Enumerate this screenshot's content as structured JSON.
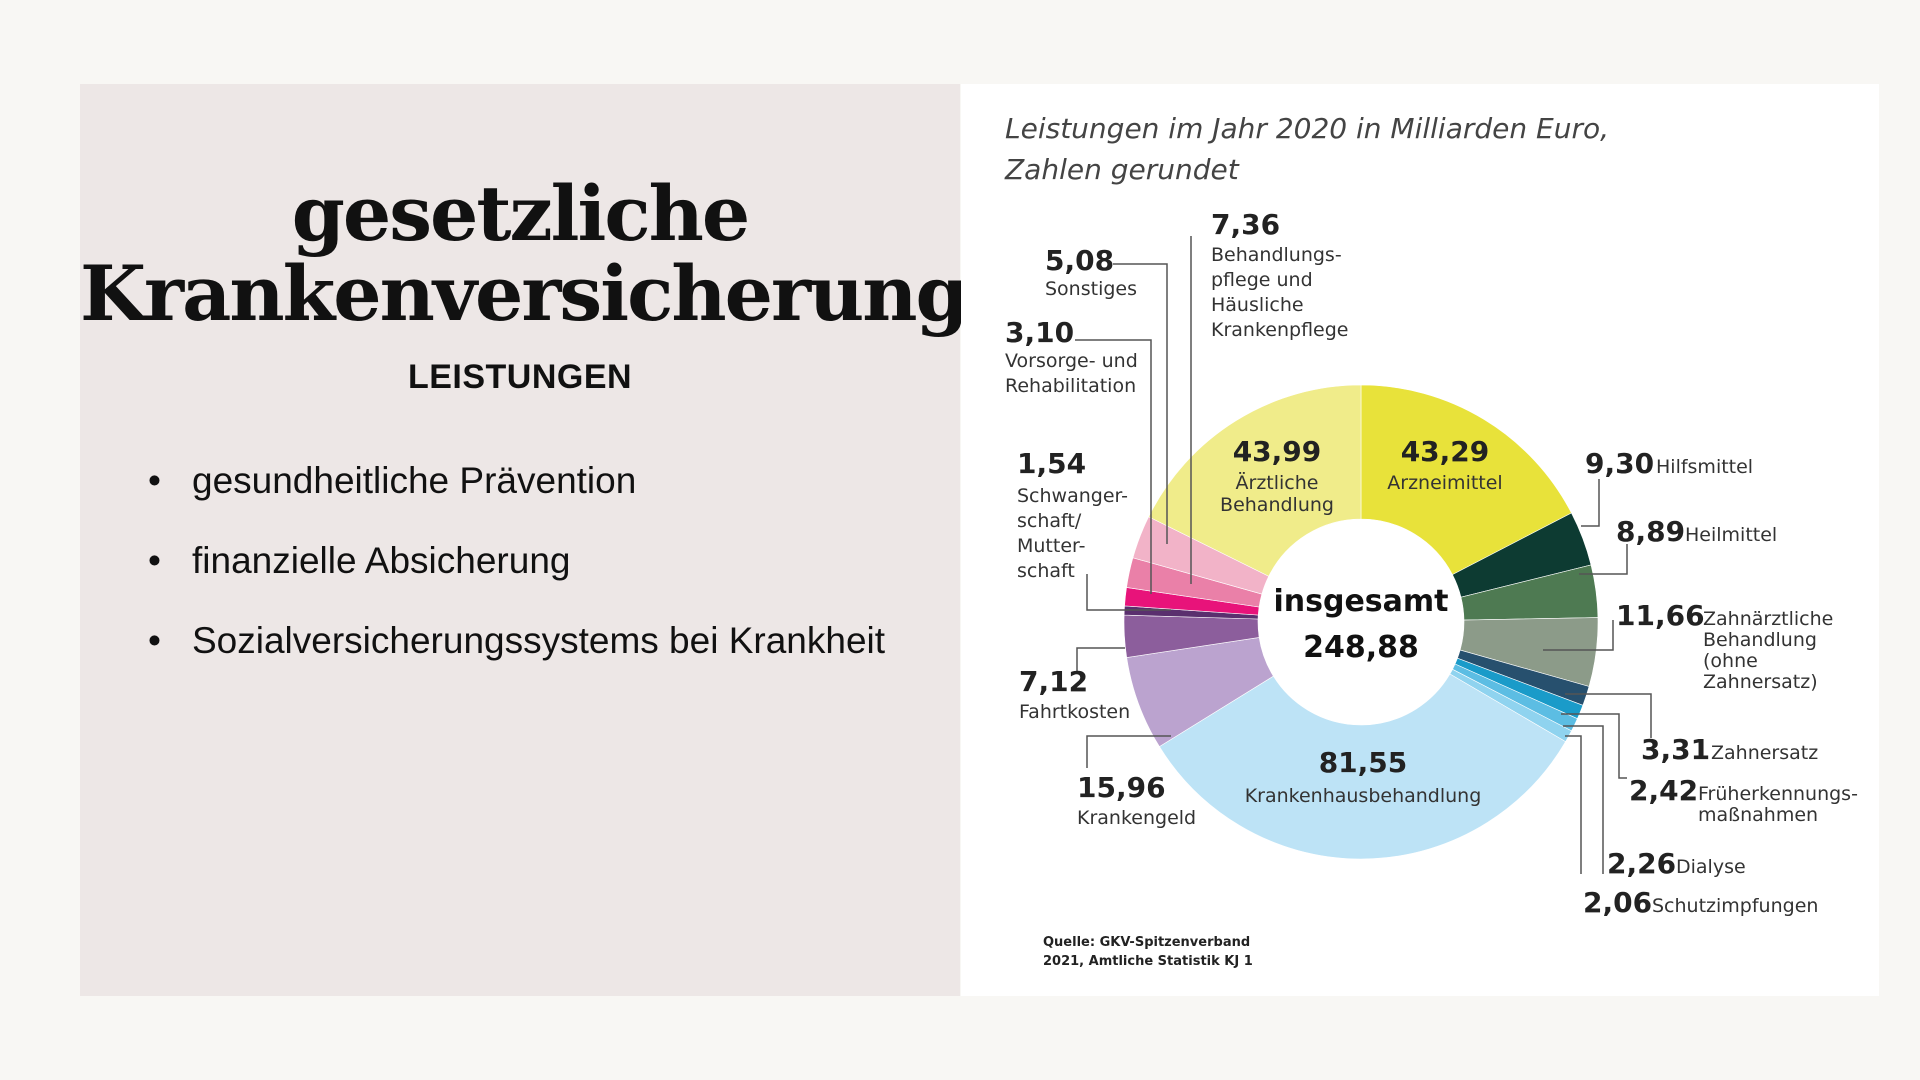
{
  "slide": {
    "title_line1": "gesetzliche",
    "title_line2": "Krankenversicherung",
    "subtitle": "LEISTUNGEN",
    "bullets": [
      "gesundheitliche Prävention",
      "finanzielle Absicherung",
      "Sozialversicherungssystems bei Krankheit"
    ]
  },
  "chart_data": {
    "type": "pie",
    "donut": true,
    "title_line1": "Leistungen im Jahr 2020 in Milliarden Euro,",
    "title_line2": "Zahlen gerundet",
    "total_label": "insgesamt",
    "total_value": "248,88",
    "unit": "Milliarden Euro",
    "source_line1": "Quelle: GKV-Spitzenverband",
    "source_line2": "2021, Amtliche Statistik KJ 1",
    "slices": [
      {
        "label": "Arzneimittel",
        "value": 43.29,
        "display": "43,29",
        "color": "#e8e23a"
      },
      {
        "label": "Hilfsmittel",
        "value": 9.3,
        "display": "9,30",
        "color": "#0d3b32"
      },
      {
        "label": "Heilmittel",
        "value": 8.89,
        "display": "8,89",
        "color": "#4e7a52"
      },
      {
        "label": "Zahnärztliche Behandlung (ohne Zahnersatz)",
        "value": 11.66,
        "display": "11,66",
        "color": "#8c9b89"
      },
      {
        "label": "Zahnersatz",
        "value": 3.31,
        "display": "3,31",
        "color": "#27506e"
      },
      {
        "label": "Früherkennungsmaßnahmen",
        "value": 2.42,
        "display": "2,42",
        "color": "#1a9bc9"
      },
      {
        "label": "Dialyse",
        "value": 2.26,
        "display": "2,26",
        "color": "#5cbde3"
      },
      {
        "label": "Schutzimpfungen",
        "value": 2.06,
        "display": "2,06",
        "color": "#8fd3ef"
      },
      {
        "label": "Krankenhausbehandlung",
        "value": 81.55,
        "display": "81,55",
        "color": "#bde3f6"
      },
      {
        "label": "Krankengeld",
        "value": 15.96,
        "display": "15,96",
        "color": "#bba3cf"
      },
      {
        "label": "Fahrtkosten",
        "value": 7.12,
        "display": "7,12",
        "color": "#8c5e9c"
      },
      {
        "label": "Schwangerschaft/Mutterschaft",
        "value": 1.54,
        "display": "1,54",
        "color": "#5a2f6e"
      },
      {
        "label": "Vorsorge- und Rehabilitation",
        "value": 3.1,
        "display": "3,10",
        "color": "#e8137a"
      },
      {
        "label": "Sonstiges",
        "value": 5.08,
        "display": "5,08",
        "color": "#ea80a8"
      },
      {
        "label": "Behandlungspflege und Häusliche Krankenpflege",
        "value": 7.36,
        "display": "7,36",
        "color": "#f2b3c8"
      },
      {
        "label": "Ärztliche Behandlung",
        "value": 43.99,
        "display": "43,99",
        "color": "#f0ec8a"
      }
    ],
    "outside_labels": {
      "behandlungspflege": [
        "Behandlungs-",
        "pflege und",
        "Häusliche",
        "Krankenpflege"
      ],
      "sonstiges": [
        "Sonstiges"
      ],
      "vorsorge": [
        "Vorsorge- und",
        "Rehabilitation"
      ],
      "schwanger": [
        "Schwanger-",
        "schaft/",
        "Mutter-",
        "schaft"
      ],
      "fahrtkosten": [
        "Fahrtkosten"
      ],
      "krankengeld": [
        "Krankengeld"
      ],
      "hilfsmittel": [
        "Hilfsmittel"
      ],
      "heilmittel": [
        "Heilmittel"
      ],
      "zahnaerztlich": [
        "Zahnärztliche",
        "Behandlung",
        "(ohne",
        "Zahnersatz)"
      ],
      "zahnersatz": [
        "Zahnersatz"
      ],
      "frueherkennung": [
        "Früherkennungs-",
        "maßnahmen"
      ],
      "dialyse": [
        "Dialyse"
      ],
      "schutzimpfungen": [
        "Schutzimpfungen"
      ]
    },
    "inside_labels": {
      "aerztlich": [
        "Ärztliche",
        "Behandlung"
      ],
      "arznei": [
        "Arzneimittel"
      ],
      "krankenhaus": [
        "Krankenhausbehandlung"
      ]
    }
  }
}
